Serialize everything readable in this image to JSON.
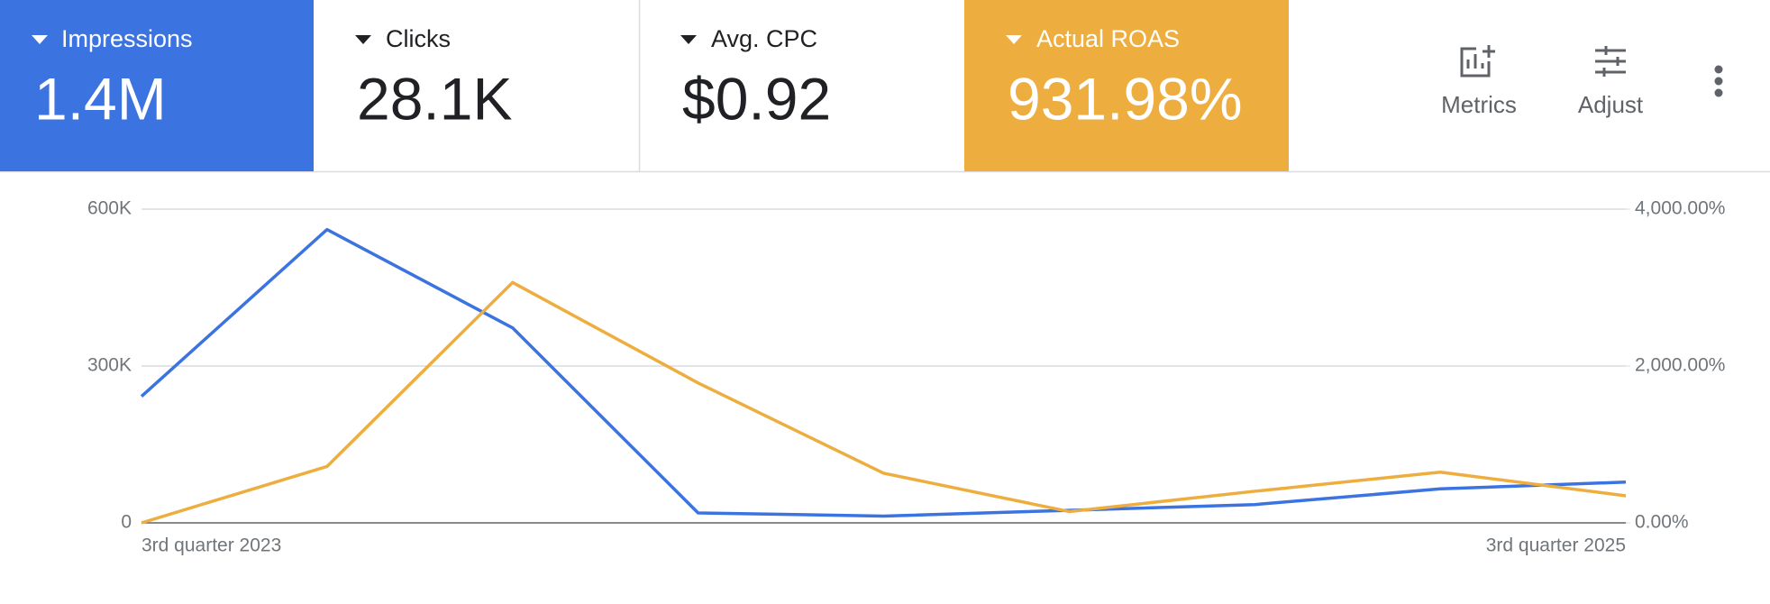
{
  "cards": [
    {
      "label": "Impressions",
      "value": "1.4M",
      "color": "#3b73e0"
    },
    {
      "label": "Clicks",
      "value": "28.1K"
    },
    {
      "label": "Avg. CPC",
      "value": "$0.92"
    },
    {
      "label": "Actual ROAS",
      "value": "931.98%",
      "color": "#edae3f"
    }
  ],
  "toolbar": {
    "metrics": "Metrics",
    "adjust": "Adjust"
  },
  "chart_data": {
    "type": "line",
    "categories": [
      "3rd quarter 2023",
      null,
      null,
      null,
      null,
      null,
      null,
      null,
      "3rd quarter 2025"
    ],
    "series": [
      {
        "color": "#3b73e0",
        "values": [
          242000,
          561000,
          373000,
          19000,
          13000,
          24000,
          35000,
          65000,
          78000
        ]
      },
      {
        "color": "#edae3f",
        "axis": "y2",
        "values": [
          0,
          719,
          3065,
          1784,
          633,
          144,
          403,
          647,
          345
        ]
      }
    ],
    "ylim": [
      0,
      600000
    ],
    "yticks": [
      0,
      {
        "value": 300000,
        "label": "300K"
      },
      {
        "value": 600000,
        "label": "600K"
      }
    ],
    "y2lim": [
      0,
      4000
    ],
    "y2ticks": [
      {
        "value": 0,
        "label": "0.00%"
      },
      {
        "value": 2000,
        "label": "2,000.00%"
      },
      {
        "value": 4000,
        "label": "4,000.00%"
      }
    ],
    "grid": true
  }
}
